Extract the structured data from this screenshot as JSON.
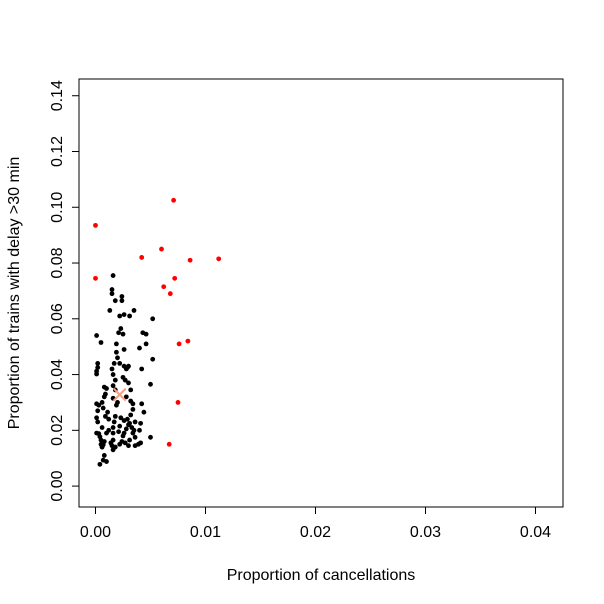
{
  "chart_data": {
    "type": "scatter",
    "xlabel": "Proportion of cancellations",
    "ylabel": "Proportion of trains with delay >30 min",
    "xlim": [
      -0.0015,
      0.0425
    ],
    "ylim": [
      -0.0075,
      0.146
    ],
    "x_ticks": [
      0.0,
      0.01,
      0.02,
      0.03,
      0.04
    ],
    "x_tick_labels": [
      "0.00",
      "0.01",
      "0.02",
      "0.03",
      "0.04"
    ],
    "y_ticks": [
      0.0,
      0.02,
      0.04,
      0.06,
      0.08,
      0.1,
      0.12,
      0.14
    ],
    "y_tick_labels": [
      "0.00",
      "0.02",
      "0.04",
      "0.06",
      "0.08",
      "0.10",
      "0.12",
      "0.14"
    ],
    "grid": false,
    "legend": "none",
    "colors": {
      "black_points": "#000000",
      "red_points": "#ff0000",
      "marker": "#f4a08a"
    },
    "series": [
      {
        "color": "#000000",
        "points": [
          [
            0.0001,
            0.0412
          ],
          [
            0.0002,
            0.0425
          ],
          [
            0.0001,
            0.0402
          ],
          [
            0.0002,
            0.044
          ],
          [
            0.0005,
            0.0515
          ],
          [
            0.0001,
            0.054
          ],
          [
            0.0001,
            0.0295
          ],
          [
            0.0002,
            0.027
          ],
          [
            0.0001,
            0.0245
          ],
          [
            0.0002,
            0.023
          ],
          [
            0.0003,
            0.029
          ],
          [
            0.0001,
            0.019
          ],
          [
            0.0003,
            0.0188
          ],
          [
            0.0004,
            0.0177
          ],
          [
            0.0005,
            0.0165
          ],
          [
            0.0005,
            0.015
          ],
          [
            0.0006,
            0.014
          ],
          [
            0.0007,
            0.0148
          ],
          [
            0.0008,
            0.016
          ],
          [
            0.0006,
            0.014
          ],
          [
            0.0004,
            0.0078
          ],
          [
            0.0007,
            0.0093
          ],
          [
            0.0008,
            0.011
          ],
          [
            0.001,
            0.0088
          ],
          [
            0.0006,
            0.021
          ],
          [
            0.0007,
            0.028
          ],
          [
            0.0006,
            0.03
          ],
          [
            0.0008,
            0.032
          ],
          [
            0.0009,
            0.033
          ],
          [
            0.001,
            0.035
          ],
          [
            0.0008,
            0.0355
          ],
          [
            0.0009,
            0.025
          ],
          [
            0.0011,
            0.0265
          ],
          [
            0.0012,
            0.024
          ],
          [
            0.0012,
            0.02
          ],
          [
            0.001,
            0.019
          ],
          [
            0.0014,
            0.0155
          ],
          [
            0.0015,
            0.0145
          ],
          [
            0.0016,
            0.013
          ],
          [
            0.0018,
            0.014
          ],
          [
            0.0016,
            0.0165
          ],
          [
            0.0016,
            0.019
          ],
          [
            0.0016,
            0.021
          ],
          [
            0.0017,
            0.023
          ],
          [
            0.0018,
            0.025
          ],
          [
            0.0019,
            0.029
          ],
          [
            0.002,
            0.03
          ],
          [
            0.0016,
            0.0315
          ],
          [
            0.0018,
            0.0345
          ],
          [
            0.0016,
            0.036
          ],
          [
            0.0018,
            0.038
          ],
          [
            0.0016,
            0.04
          ],
          [
            0.0015,
            0.042
          ],
          [
            0.0017,
            0.044
          ],
          [
            0.0019,
            0.048
          ],
          [
            0.002,
            0.046
          ],
          [
            0.0019,
            0.051
          ],
          [
            0.0021,
            0.055
          ],
          [
            0.0023,
            0.0565
          ],
          [
            0.0025,
            0.0545
          ],
          [
            0.0026,
            0.049
          ],
          [
            0.0022,
            0.044
          ],
          [
            0.0026,
            0.043
          ],
          [
            0.0028,
            0.042
          ],
          [
            0.003,
            0.043
          ],
          [
            0.0025,
            0.039
          ],
          [
            0.0027,
            0.038
          ],
          [
            0.003,
            0.037
          ],
          [
            0.0032,
            0.0345
          ],
          [
            0.0028,
            0.032
          ],
          [
            0.0032,
            0.0305
          ],
          [
            0.0034,
            0.0295
          ],
          [
            0.0034,
            0.0275
          ],
          [
            0.0032,
            0.0255
          ],
          [
            0.0036,
            0.023
          ],
          [
            0.003,
            0.022
          ],
          [
            0.0028,
            0.0205
          ],
          [
            0.0026,
            0.019
          ],
          [
            0.0025,
            0.018
          ],
          [
            0.0024,
            0.016
          ],
          [
            0.0022,
            0.015
          ],
          [
            0.0022,
            0.0215
          ],
          [
            0.0021,
            0.0195
          ],
          [
            0.0023,
            0.0245
          ],
          [
            0.0026,
            0.0235
          ],
          [
            0.0029,
            0.024
          ],
          [
            0.0031,
            0.0225
          ],
          [
            0.0033,
            0.021
          ],
          [
            0.0035,
            0.02
          ],
          [
            0.0034,
            0.019
          ],
          [
            0.0036,
            0.0175
          ],
          [
            0.0031,
            0.0165
          ],
          [
            0.0027,
            0.0155
          ],
          [
            0.003,
            0.0145
          ],
          [
            0.0036,
            0.0145
          ],
          [
            0.0039,
            0.015
          ],
          [
            0.0041,
            0.0155
          ],
          [
            0.004,
            0.02
          ],
          [
            0.0041,
            0.0225
          ],
          [
            0.0044,
            0.0265
          ],
          [
            0.0042,
            0.0295
          ],
          [
            0.0042,
            0.042
          ],
          [
            0.004,
            0.0495
          ],
          [
            0.0046,
            0.051
          ],
          [
            0.0043,
            0.055
          ],
          [
            0.0046,
            0.0545
          ],
          [
            0.0052,
            0.06
          ],
          [
            0.0052,
            0.0455
          ],
          [
            0.005,
            0.0365
          ],
          [
            0.005,
            0.0175
          ],
          [
            0.0035,
            0.063
          ],
          [
            0.0031,
            0.061
          ],
          [
            0.0026,
            0.0615
          ],
          [
            0.0022,
            0.061
          ],
          [
            0.0024,
            0.068
          ],
          [
            0.0018,
            0.0665
          ],
          [
            0.0015,
            0.069
          ],
          [
            0.0015,
            0.0705
          ],
          [
            0.0016,
            0.0755
          ],
          [
            0.0024,
            0.0665
          ],
          [
            0.0013,
            0.063
          ],
          [
            0.0029,
            0.0425
          ]
        ]
      },
      {
        "color": "#ff0000",
        "points": [
          [
            0.0,
            0.0935
          ],
          [
            0.0,
            0.0745
          ],
          [
            0.0042,
            0.082
          ],
          [
            0.006,
            0.085
          ],
          [
            0.0071,
            0.1025
          ],
          [
            0.0072,
            0.0745
          ],
          [
            0.0062,
            0.0715
          ],
          [
            0.0068,
            0.069
          ],
          [
            0.0086,
            0.081
          ],
          [
            0.0112,
            0.0815
          ],
          [
            0.0076,
            0.051
          ],
          [
            0.0084,
            0.052
          ],
          [
            0.0075,
            0.03
          ],
          [
            0.0067,
            0.015
          ]
        ]
      }
    ],
    "marker_point": [
      0.0022,
      0.0328
    ]
  }
}
